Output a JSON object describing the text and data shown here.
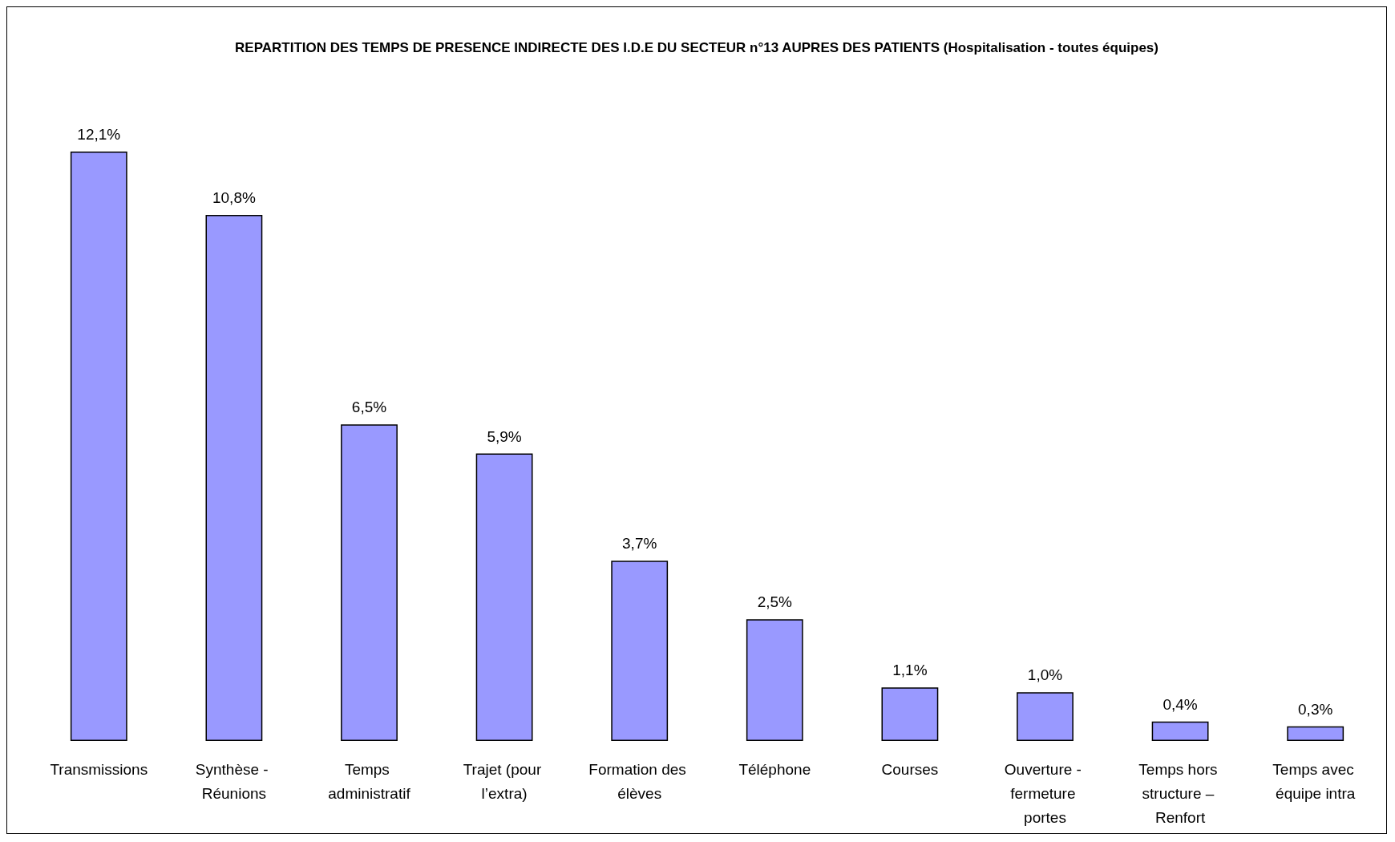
{
  "chart_data": {
    "type": "bar",
    "title": "REPARTITION DES TEMPS DE PRESENCE INDIRECTE DES I.D.E DU SECTEUR n°13 AUPRES DES PATIENTS (Hospitalisation - toutes équipes)",
    "categories": [
      "Transmissions",
      "Synthèse - Réunions",
      "Temps administratif",
      "Trajet (pour l’extra)",
      "Formation des élèves",
      "Téléphone",
      "Courses",
      "Ouverture - fermeture portes",
      "Temps hors structure – Renfort",
      "Temps avec équipe intra"
    ],
    "values": [
      12.1,
      10.8,
      6.5,
      5.9,
      3.7,
      2.5,
      1.1,
      1.0,
      0.4,
      0.3
    ],
    "value_labels": [
      "12,1%",
      "10,8%",
      "6,5%",
      "5,9%",
      "3,7%",
      "2,5%",
      "1,1%",
      "1,0%",
      "0,4%",
      "0,3%"
    ],
    "color": "#9999ff"
  }
}
